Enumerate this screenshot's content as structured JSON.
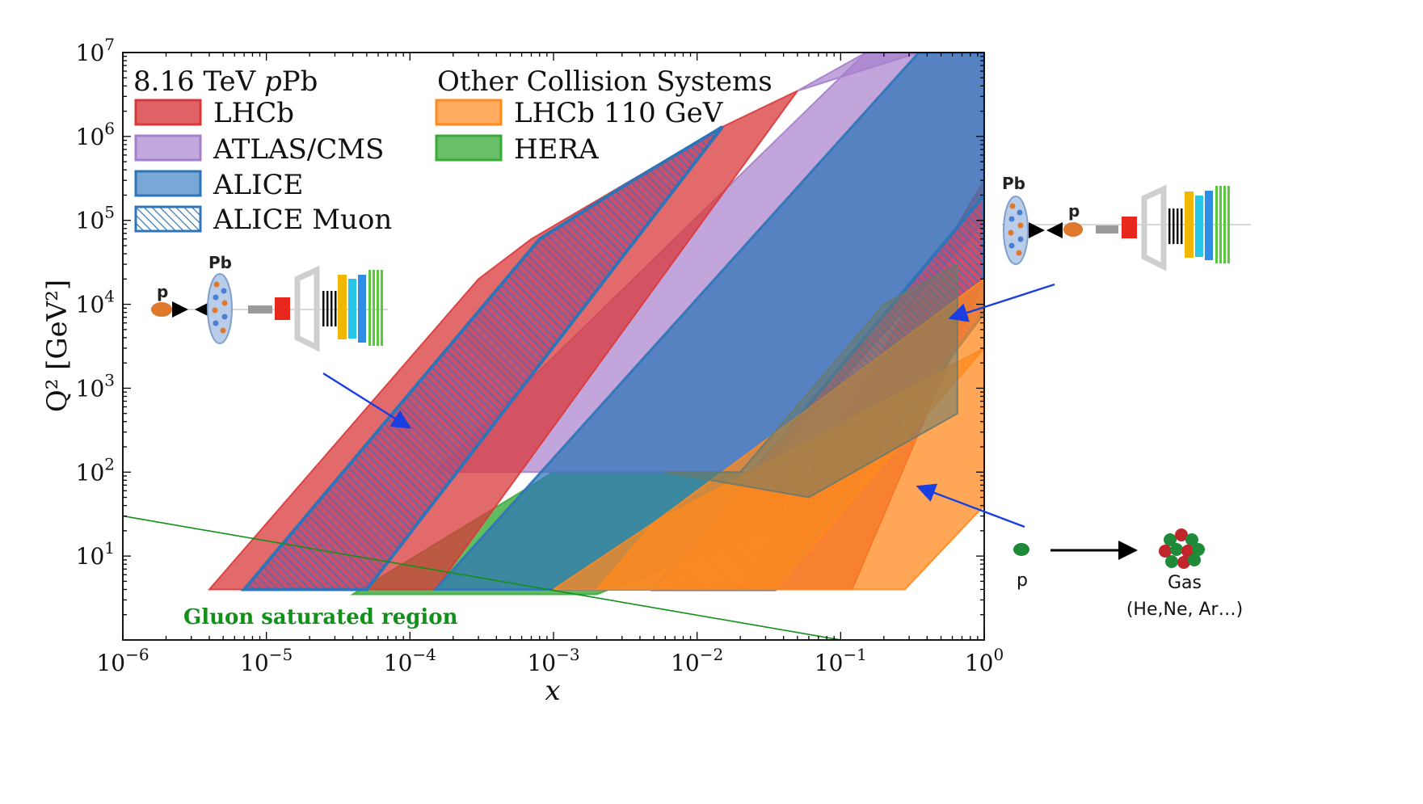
{
  "chart_data": {
    "type": "area",
    "x_scale": "log",
    "y_scale": "log",
    "xlabel": "x",
    "ylabel": "Q² [GeV²]",
    "xlim": [
      1e-06,
      1
    ],
    "ylim": [
      1,
      10000000.0
    ],
    "x_ticks": [
      {
        "value": 1e-06,
        "base": "10",
        "exp": "−6"
      },
      {
        "value": 1e-05,
        "base": "10",
        "exp": "−5"
      },
      {
        "value": 0.0001,
        "base": "10",
        "exp": "−4"
      },
      {
        "value": 0.001,
        "base": "10",
        "exp": "−3"
      },
      {
        "value": 0.01,
        "base": "10",
        "exp": "−2"
      },
      {
        "value": 0.1,
        "base": "10",
        "exp": "−1"
      },
      {
        "value": 1,
        "base": "10",
        "exp": "0"
      }
    ],
    "y_ticks": [
      {
        "value": 10,
        "base": "10",
        "exp": "1"
      },
      {
        "value": 100,
        "base": "10",
        "exp": "2"
      },
      {
        "value": 1000,
        "base": "10",
        "exp": "3"
      },
      {
        "value": 10000,
        "base": "10",
        "exp": "4"
      },
      {
        "value": 100000,
        "base": "10",
        "exp": "5"
      },
      {
        "value": 1000000,
        "base": "10",
        "exp": "6"
      },
      {
        "value": 10000000,
        "base": "10",
        "exp": "7"
      }
    ],
    "legend": {
      "placement": "top-left",
      "group1_title_prefix": "8.16 TeV ",
      "group1_title_italic": "p",
      "group1_title_suffix": "Pb",
      "group2_title": "Other Collision Systems",
      "entries": [
        "LHCb",
        "ATLAS/CMS",
        "ALICE",
        "ALICE Muon",
        "LHCb 110 GeV",
        "HERA"
      ]
    },
    "series": [
      {
        "name": "HERA",
        "color": "#3aab3a",
        "alpha": 0.8,
        "polygons": [
          [
            [
              4e-05,
              3.5
            ],
            [
              0.002,
              3.5
            ],
            [
              0.04,
              25
            ],
            [
              0.04,
              100
            ],
            [
              0.001,
              100
            ]
          ]
        ]
      },
      {
        "name": "ATLAS/CMS",
        "color": "#a67fcc",
        "alpha": 0.7,
        "polygons": [
          [
            [
              0.00015,
              100
            ],
            [
              0.02,
              100
            ],
            [
              1,
              100000.0
            ],
            [
              1,
              10000000.0
            ],
            [
              0.15,
              10000000.0
            ]
          ],
          [
            [
              0.05,
              3500000.0
            ],
            [
              0.15,
              10000000.0
            ],
            [
              0.35,
              10000000.0
            ]
          ]
        ]
      },
      {
        "name": "LHCb",
        "color": "#d9383a",
        "alpha": 0.75,
        "polygons": [
          [
            [
              4e-06,
              4
            ],
            [
              0.00015,
              4
            ],
            [
              0.05,
              3500000.0
            ],
            [
              0.015,
              1300000.0
            ],
            [
              0.0007,
              60000.0
            ],
            [
              0.0003,
              20000.0
            ]
          ],
          [
            [
              0.02,
              4
            ],
            [
              0.12,
              4
            ],
            [
              1,
              20000.0
            ],
            [
              1,
              300000.0
            ]
          ]
        ]
      },
      {
        "name": "ALICE",
        "color": "#2e74b8",
        "alpha": 0.72,
        "polygons": [
          [
            [
              0.00015,
              4
            ],
            [
              0.005,
              4
            ],
            [
              1,
              100000.0
            ],
            [
              1,
              10000000.0
            ],
            [
              0.35,
              10000000.0
            ]
          ]
        ]
      },
      {
        "name": "ALICE Muon",
        "color": "#c44a70",
        "alpha": 0.85,
        "polygons": [
          [
            [
              7e-06,
              4
            ],
            [
              5e-05,
              4
            ],
            [
              0.015,
              1300000.0
            ],
            [
              0.003,
              250000.0
            ],
            [
              0.0008,
              60000.0
            ]
          ],
          [
            [
              0.005,
              4
            ],
            [
              0.035,
              4
            ],
            [
              1,
              8000.0
            ],
            [
              1,
              200000.0
            ]
          ]
        ]
      },
      {
        "name": "LHCb 110 GeV",
        "color": "#ff8a1e",
        "alpha": 0.75,
        "polygons": [
          [
            [
              0.002,
              4
            ],
            [
              0.28,
              4
            ],
            [
              1,
              40
            ],
            [
              1,
              3000.0
            ],
            [
              0.005,
              25
            ]
          ],
          [
            [
              0.001,
              4
            ],
            [
              0.035,
              4
            ],
            [
              1,
              3000.0
            ],
            [
              1,
              20000.0
            ],
            [
              0.005,
              25
            ]
          ]
        ]
      },
      {
        "name": "Gas region",
        "color": "#6a7a6a",
        "alpha": 0.55,
        "polygons": [
          [
            [
              0.06,
              50
            ],
            [
              0.65,
              500
            ],
            [
              0.65,
              30000.0
            ],
            [
              0.2,
              10000.0
            ],
            [
              0.02,
              100
            ],
            [
              0.006,
              100
            ]
          ]
        ]
      }
    ],
    "saturation_line": {
      "from": [
        1e-06,
        30
      ],
      "to": [
        0.1,
        1
      ],
      "color": "#129018"
    },
    "saturation_label": "Gluon saturated region"
  },
  "illustrations": {
    "left_detector": {
      "proton_label": "p",
      "nucleus_label": "Pb"
    },
    "right_detector": {
      "proton_label": "p",
      "nucleus_label": "Pb"
    },
    "fixed_target": {
      "proton_label": "p",
      "gas_label": "Gas",
      "gas_species": "(He,Ne, Ar…)"
    }
  },
  "colors": {
    "hatch_edge": "#2e74b8",
    "arrow": "#1a3ee0",
    "detector_red": "#e8281e",
    "detector_gray": "#cfcfcf"
  }
}
